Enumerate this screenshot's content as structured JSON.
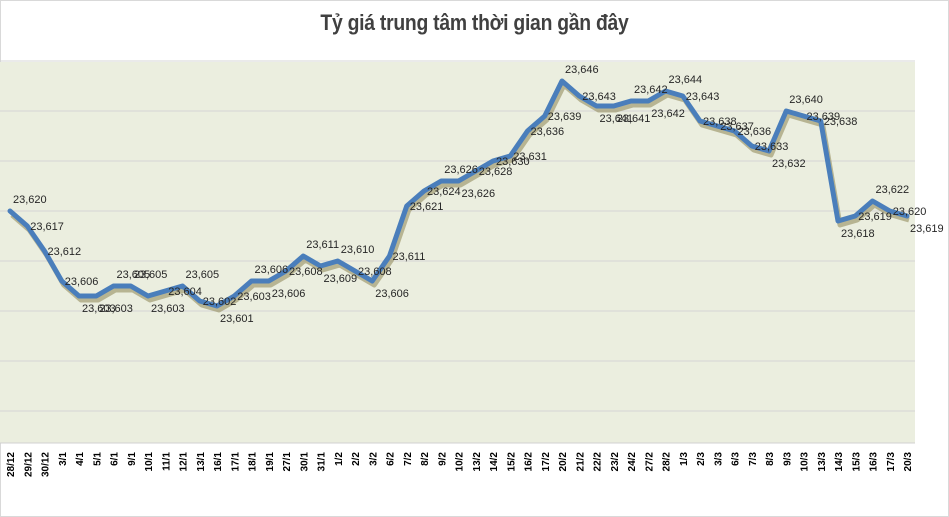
{
  "title": "Tỷ giá trung tâm thời gian gần đây",
  "colors": {
    "line": "#4a7ebb",
    "plot_bg": "#ebeedf",
    "grid": "#d4d4d4",
    "shadow": "#8c8552"
  },
  "chart_data": {
    "type": "line",
    "title": "Tỷ giá trung tâm thời gian gần đây",
    "xlabel": "",
    "ylabel": "",
    "ylim": [
      23573,
      23650
    ],
    "grid": true,
    "legend": "none",
    "categories": [
      "28/12",
      "29/12",
      "30/12",
      "3/1",
      "4/1",
      "5/1",
      "6/1",
      "9/1",
      "10/1",
      "11/1",
      "12/1",
      "13/1",
      "16/1",
      "17/1",
      "18/1",
      "19/1",
      "27/1",
      "30/1",
      "31/1",
      "1/2",
      "2/2",
      "3/2",
      "6/2",
      "7/2",
      "8/2",
      "9/2",
      "10/2",
      "13/2",
      "14/2",
      "15/2",
      "16/2",
      "17/2",
      "20/2",
      "21/2",
      "22/2",
      "23/2",
      "24/2",
      "27/2",
      "28/2",
      "1/3",
      "2/3",
      "3/3",
      "6/3",
      "7/3",
      "8/3",
      "9/3",
      "10/3",
      "13/3",
      "14/3",
      "15/3",
      "16/3",
      "17/3",
      "20/3"
    ],
    "series": [
      {
        "name": "Tỷ giá trung tâm",
        "values": [
          23620,
          23617,
          23612,
          23606,
          23603,
          23603,
          23605,
          23605,
          23603,
          23604,
          23605,
          23602,
          23601,
          23603,
          23606,
          23606,
          23608,
          23611,
          23609,
          23610,
          23608,
          23606,
          23611,
          23621,
          23624,
          23626,
          23626,
          23628,
          23630,
          23631,
          23636,
          23639,
          23646,
          23643,
          23641,
          23641,
          23642,
          23642,
          23644,
          23643,
          23638,
          23637,
          23636,
          23633,
          23632,
          23640,
          23639,
          23638,
          23618,
          23619,
          23622,
          23620,
          23619
        ]
      }
    ],
    "data_labels": [
      "23,620",
      "23,617",
      "23,612",
      "23,606",
      "23,603",
      "23,603",
      "23,605",
      "23,605",
      "23,603",
      "23,604",
      "23,605",
      "23,602",
      "23,601",
      "23,603",
      "23,606",
      "23,606",
      "23,608",
      "23,611",
      "23,609",
      "23,610",
      "23,608",
      "23,606",
      "23,611",
      "23,621",
      "23,624",
      "23,626",
      "23,626",
      "23,628",
      "23,630",
      "23,631",
      "23,636",
      "23,639",
      "23,646",
      "23,643",
      "23,641",
      "23,641",
      "23,642",
      "23,642",
      "23,644",
      "23,643",
      "23,638",
      "23,637",
      "23,636",
      "23,633",
      "23,632",
      "23,640",
      "23,639",
      "23,638",
      "23,618",
      "23,619",
      "23,622",
      "23,620",
      "23,619"
    ],
    "gridlines": [
      23650,
      23640,
      23630,
      23620,
      23610,
      23600,
      23590,
      23580
    ]
  }
}
